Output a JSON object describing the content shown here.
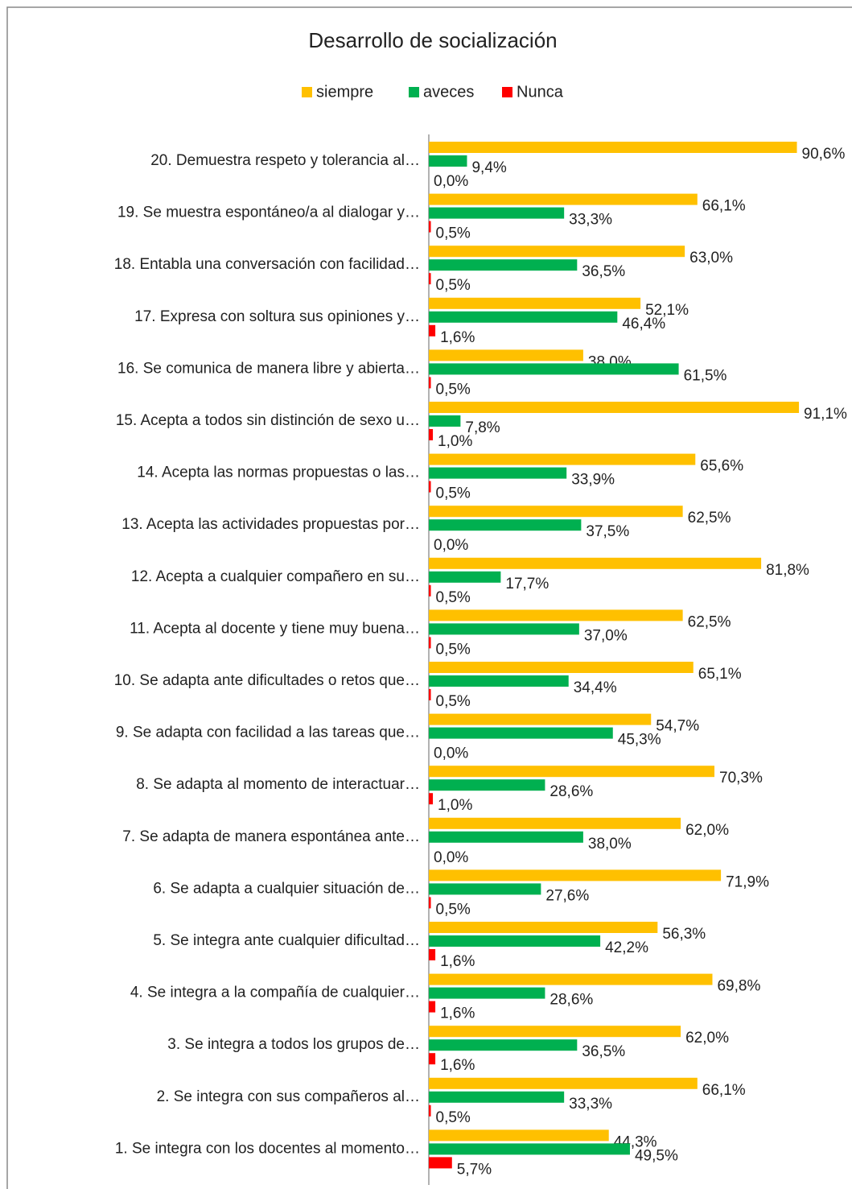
{
  "chart_data": {
    "type": "bar",
    "orientation": "horizontal",
    "title": "Desarrollo de socialización",
    "categories": [
      "1. Se integra con los docentes al momento…",
      "2. Se integra con sus compañeros al…",
      "3. Se integra a todos los grupos de…",
      "4. Se integra a la compañía de cualquier…",
      "5. Se integra ante cualquier dificultad…",
      "6. Se adapta a cualquier situación de…",
      "7. Se adapta de manera espontánea ante…",
      "8. Se adapta al momento de interactuar…",
      "9. Se adapta con facilidad a las tareas que…",
      "10. Se adapta ante dificultades o retos que…",
      "11. Acepta al docente y tiene muy buena…",
      "12. Acepta a cualquier compañero en su…",
      "13. Acepta las actividades propuestas por…",
      "14. Acepta las normas propuestas o las…",
      "15. Acepta a todos sin distinción de sexo u…",
      "16. Se comunica de manera libre y abierta…",
      "17. Expresa con soltura sus opiniones y…",
      "18. Entabla una conversación con facilidad…",
      "19. Se muestra espontáneo/a al dialogar y…",
      "20. Demuestra respeto y tolerancia al…"
    ],
    "series": [
      {
        "name": "siempre",
        "color": "#FFC000",
        "values": [
          44.3,
          66.1,
          62.0,
          69.8,
          56.3,
          71.9,
          62.0,
          70.3,
          54.7,
          65.1,
          62.5,
          81.8,
          62.5,
          65.6,
          91.1,
          38.0,
          52.1,
          63.0,
          66.1,
          90.6
        ],
        "value_labels": [
          "44,3%",
          "66,1%",
          "62,0%",
          "69,8%",
          "56,3%",
          "71,9%",
          "62,0%",
          "70,3%",
          "54,7%",
          "65,1%",
          "62,5%",
          "81,8%",
          "62,5%",
          "65,6%",
          "91,1%",
          "38,0%",
          "52,1%",
          "63,0%",
          "66,1%",
          "90,6%"
        ]
      },
      {
        "name": "aveces",
        "color": "#00B050",
        "values": [
          49.5,
          33.3,
          36.5,
          28.6,
          42.2,
          27.6,
          38.0,
          28.6,
          45.3,
          34.4,
          37.0,
          17.7,
          37.5,
          33.9,
          7.8,
          61.5,
          46.4,
          36.5,
          33.3,
          9.4
        ],
        "value_labels": [
          "49,5%",
          "33,3%",
          "36,5%",
          "28,6%",
          "42,2%",
          "27,6%",
          "38,0%",
          "28,6%",
          "45,3%",
          "34,4%",
          "37,0%",
          "17,7%",
          "37,5%",
          "33,9%",
          "7,8%",
          "61,5%",
          "46,4%",
          "36,5%",
          "33,3%",
          "9,4%"
        ]
      },
      {
        "name": "Nunca",
        "color": "#FF0000",
        "values": [
          5.7,
          0.5,
          1.6,
          1.6,
          1.6,
          0.5,
          0.0,
          1.0,
          0.0,
          0.5,
          0.5,
          0.5,
          0.0,
          0.5,
          1.0,
          0.5,
          1.6,
          0.5,
          0.5,
          0.0
        ],
        "value_labels": [
          "5,7%",
          "0,5%",
          "1,6%",
          "1,6%",
          "1,6%",
          "0,5%",
          "0,0%",
          "1,0%",
          "0,0%",
          "0,5%",
          "0,5%",
          "0,5%",
          "0,0%",
          "0,5%",
          "1,0%",
          "0,5%",
          "1,6%",
          "0,5%",
          "0,5%",
          "0,0%"
        ]
      }
    ],
    "legend": "top"
  }
}
